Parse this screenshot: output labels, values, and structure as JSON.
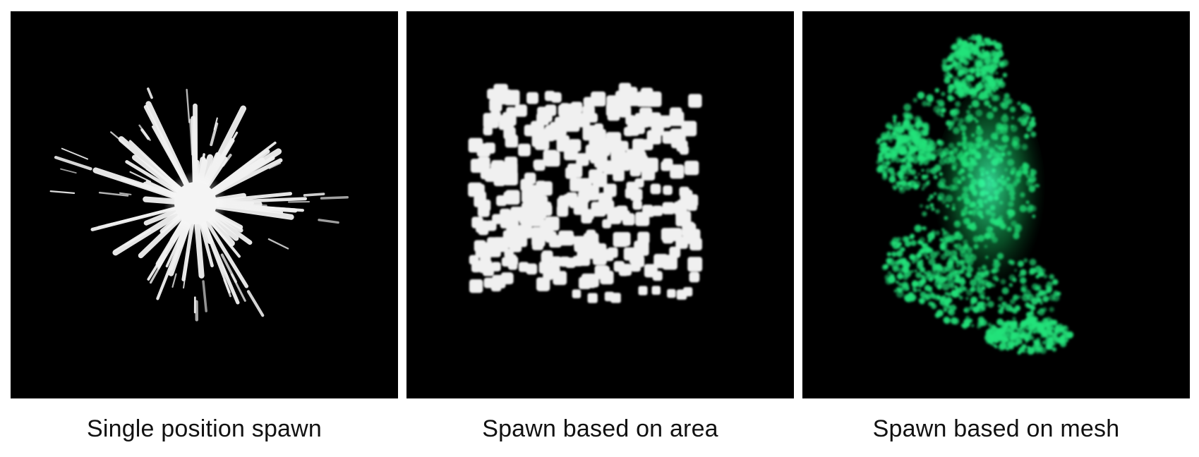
{
  "panels": [
    {
      "id": "single-position",
      "caption": "Single position spawn",
      "particle_color": "#f2f2f2"
    },
    {
      "id": "area",
      "caption": "Spawn based on area",
      "particle_color": "#f0f0f0"
    },
    {
      "id": "mesh",
      "caption": "Spawn based on mesh",
      "particle_color": "#22e27a"
    }
  ]
}
